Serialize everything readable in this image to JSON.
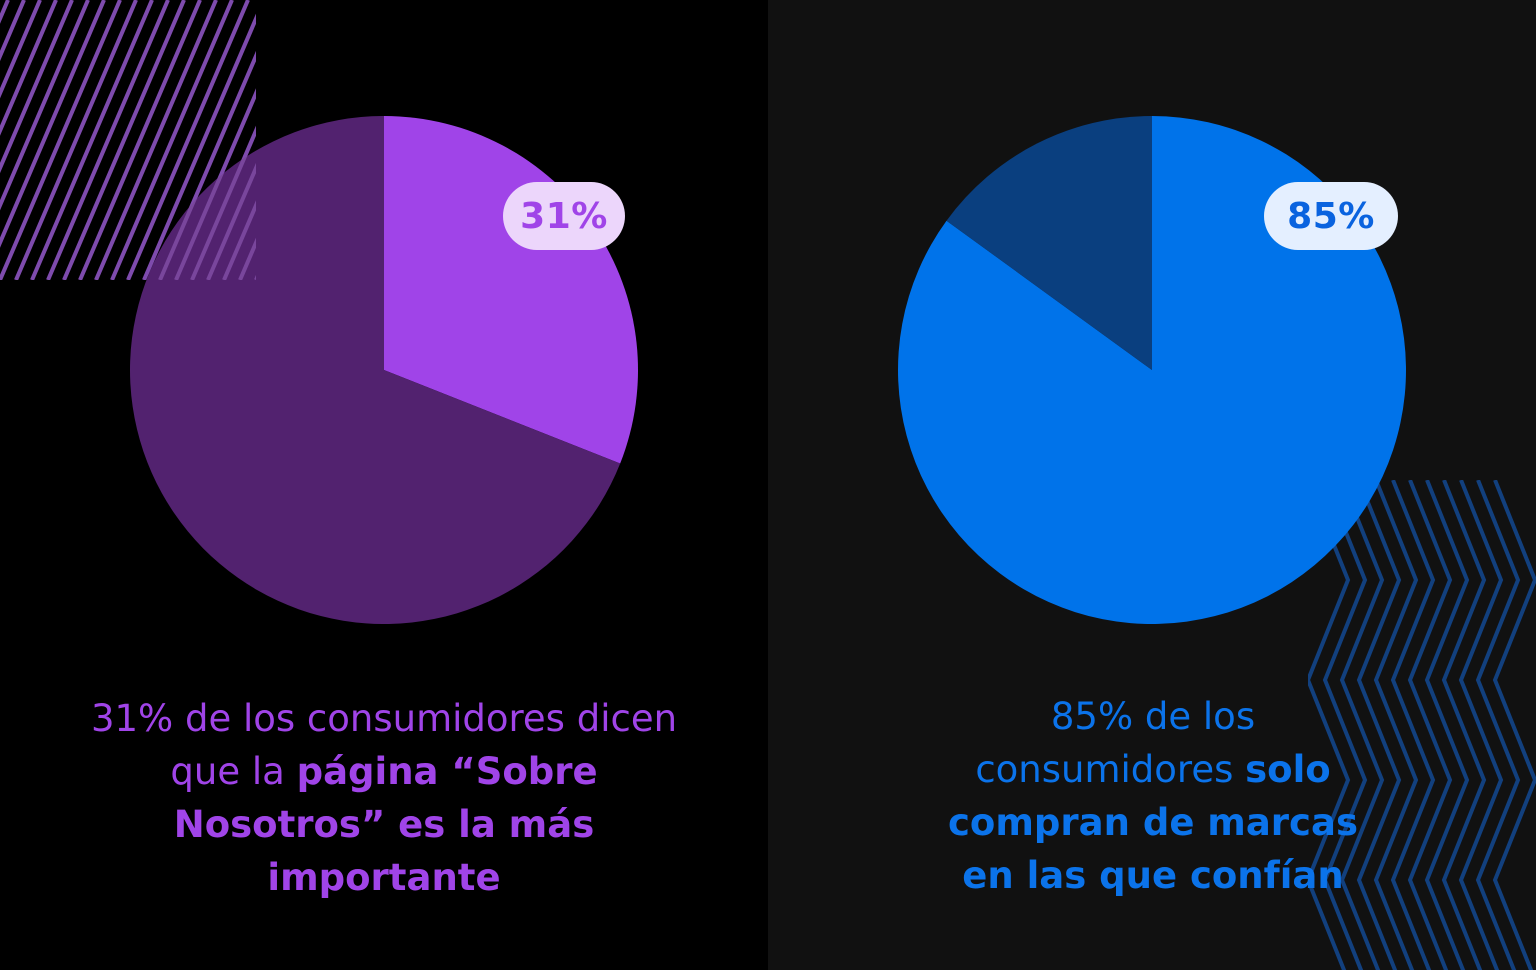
{
  "colors": {
    "left_bg": "#000000",
    "right_bg": "#111111",
    "purple_highlight": "#a044e8",
    "purple_rest": "#52226f",
    "blue_highlight": "#0073ea",
    "blue_rest": "#0a3f7f",
    "stripe_purple": "#5a2a8a",
    "stripe_blue": "#12407e"
  },
  "chart_data": [
    {
      "type": "pie",
      "slices": [
        {
          "label": "31%",
          "value": 31
        },
        {
          "label": "",
          "value": 69
        }
      ],
      "caption": {
        "regular": "31% de los consumidores dicen que la",
        "bold": "página “Sobre Nosotros” es la más importante"
      }
    },
    {
      "type": "pie",
      "slices": [
        {
          "label": "85%",
          "value": 85
        },
        {
          "label": "",
          "value": 15
        }
      ],
      "caption": {
        "regular": "85% de los consumidores",
        "bold": "solo compran de marcas en las que confían"
      }
    }
  ]
}
